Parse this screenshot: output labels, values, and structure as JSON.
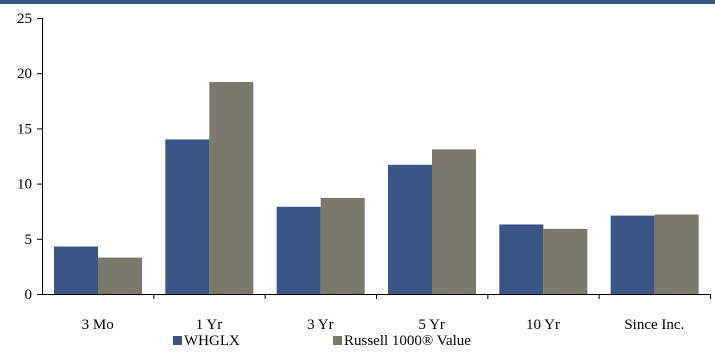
{
  "chart_data": {
    "type": "bar",
    "categories": [
      "3 Mo",
      "1 Yr",
      "3 Yr",
      "5 Yr",
      "10 Yr",
      "Since Inc."
    ],
    "series": [
      {
        "name": "WHGLX",
        "color": "#3b5686",
        "values": [
          4.3,
          14.0,
          7.9,
          11.7,
          6.3,
          7.1
        ]
      },
      {
        "name": "Russell 1000® Value",
        "color": "#7a7a6c",
        "values": [
          3.3,
          19.2,
          8.7,
          13.1,
          5.9,
          7.2
        ]
      }
    ],
    "yticks": [
      "0",
      "5",
      "10",
      "15",
      "20",
      "25"
    ],
    "ylim": [
      0,
      25
    ],
    "grid": false,
    "legend_position": "bottom-center",
    "title": "",
    "xlabel": "",
    "ylabel": ""
  }
}
